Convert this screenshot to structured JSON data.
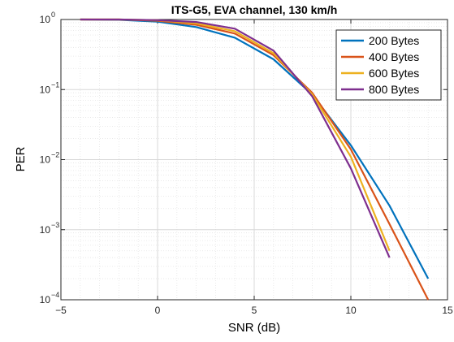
{
  "chart_data": {
    "type": "line",
    "title": "ITS-G5, EVA channel, 130 km/h",
    "xlabel": "SNR (dB)",
    "ylabel": "PER",
    "xlim": [
      -5,
      15
    ],
    "ylim": [
      0.0001,
      1
    ],
    "yscale": "log",
    "grid": true,
    "minor_grid": true,
    "legend_position": "top-right",
    "x_ticks": [
      {
        "value": -5,
        "label": "−5"
      },
      {
        "value": 0,
        "label": "0"
      },
      {
        "value": 5,
        "label": "5"
      },
      {
        "value": 10,
        "label": "10"
      },
      {
        "value": 15,
        "label": "15"
      }
    ],
    "y_ticks": [
      {
        "value": 1,
        "base": "10",
        "exp": "0"
      },
      {
        "value": 0.1,
        "base": "10",
        "exp": "−1"
      },
      {
        "value": 0.01,
        "base": "10",
        "exp": "−2"
      },
      {
        "value": 0.001,
        "base": "10",
        "exp": "−3"
      },
      {
        "value": 0.0001,
        "base": "10",
        "exp": "−4"
      }
    ],
    "series": [
      {
        "name": "200 Bytes",
        "color": "#0072BD",
        "x": [
          -4,
          -2,
          0,
          2,
          4,
          6,
          8,
          10,
          12,
          14
        ],
        "y": [
          1,
          0.99,
          0.93,
          0.78,
          0.55,
          0.27,
          0.085,
          0.016,
          0.0022,
          0.0002
        ]
      },
      {
        "name": "400 Bytes",
        "color": "#D95319",
        "x": [
          -4,
          -2,
          0,
          2,
          4,
          6,
          8,
          10,
          12,
          14
        ],
        "y": [
          1,
          1,
          0.96,
          0.84,
          0.63,
          0.31,
          0.09,
          0.014,
          0.0012,
          0.0001
        ]
      },
      {
        "name": "600 Bytes",
        "color": "#EDB120",
        "x": [
          -4,
          -2,
          0,
          2,
          4,
          6,
          8,
          10,
          12
        ],
        "y": [
          1,
          1,
          0.98,
          0.88,
          0.68,
          0.33,
          0.085,
          0.011,
          0.0005
        ]
      },
      {
        "name": "800 Bytes",
        "color": "#7E2F8E",
        "x": [
          -4,
          -2,
          0,
          2,
          4,
          6,
          8,
          10,
          12
        ],
        "y": [
          1,
          1,
          0.98,
          0.92,
          0.74,
          0.36,
          0.08,
          0.0075,
          0.0004
        ]
      }
    ]
  }
}
